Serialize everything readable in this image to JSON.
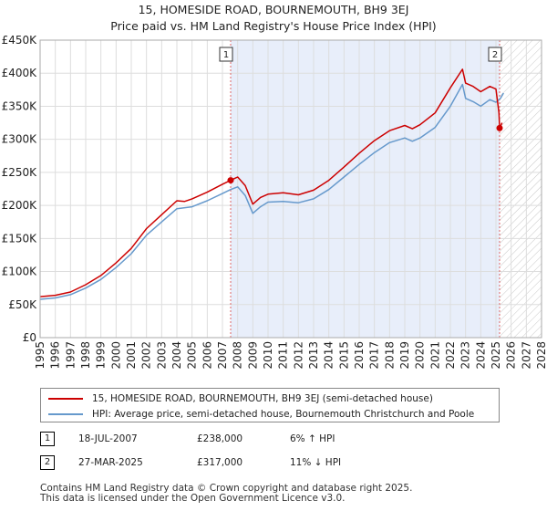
{
  "title": {
    "line1": "15, HOMESIDE ROAD, BOURNEMOUTH, BH9 3EJ",
    "line2": "Price paid vs. HM Land Registry's House Price Index (HPI)"
  },
  "colors": {
    "property_line": "#cc0000",
    "hpi_line": "#6699cc",
    "shade_fill": "#e8eefa",
    "grid": "#dddddd",
    "marker_vline": "#dd6666"
  },
  "chart_data": {
    "type": "line",
    "title": "Price paid vs. HM Land Registry's House Price Index (HPI)",
    "xlabel": "",
    "ylabel": "",
    "xlim": [
      1995,
      2028
    ],
    "ylim": [
      0,
      450000
    ],
    "x_ticks": [
      1995,
      1996,
      1997,
      1998,
      1999,
      2000,
      2001,
      2002,
      2003,
      2004,
      2005,
      2006,
      2007,
      2008,
      2009,
      2010,
      2011,
      2012,
      2013,
      2014,
      2015,
      2016,
      2017,
      2018,
      2019,
      2020,
      2021,
      2022,
      2023,
      2024,
      2025,
      2026,
      2027,
      2028
    ],
    "y_ticks": [
      {
        "value": 0,
        "label": "£0"
      },
      {
        "value": 50000,
        "label": "£50K"
      },
      {
        "value": 100000,
        "label": "£100K"
      },
      {
        "value": 150000,
        "label": "£150K"
      },
      {
        "value": 200000,
        "label": "£200K"
      },
      {
        "value": 250000,
        "label": "£250K"
      },
      {
        "value": 300000,
        "label": "£300K"
      },
      {
        "value": 350000,
        "label": "£350K"
      },
      {
        "value": 400000,
        "label": "£400K"
      },
      {
        "value": 450000,
        "label": "£450K"
      }
    ],
    "grid": true,
    "shaded_period": [
      2007.54,
      2025.24
    ],
    "hatched_after": 2025.24,
    "series": [
      {
        "name": "15, HOMESIDE ROAD, BOURNEMOUTH, BH9 3EJ (semi-detached house)",
        "color": "#cc0000",
        "x": [
          1995,
          1996,
          1997,
          1998,
          1999,
          2000,
          2001,
          2002,
          2003,
          2004,
          2004.5,
          2005,
          2006,
          2007,
          2007.54,
          2008,
          2008.5,
          2009,
          2009.5,
          2010,
          2011,
          2012,
          2013,
          2014,
          2015,
          2016,
          2017,
          2018,
          2019,
          2019.5,
          2020,
          2021,
          2022,
          2022.8,
          2023,
          2023.5,
          2024,
          2024.6,
          2025,
          2025.2,
          2025.24,
          2025.4
        ],
        "y": [
          62000,
          64000,
          69000,
          80000,
          94000,
          113000,
          135000,
          165000,
          186000,
          207000,
          206000,
          210000,
          220000,
          232000,
          238000,
          243000,
          230000,
          202000,
          212000,
          217000,
          219000,
          216000,
          223000,
          238000,
          258000,
          279000,
          298000,
          313000,
          321000,
          316000,
          322000,
          340000,
          378000,
          406000,
          385000,
          380000,
          372000,
          380000,
          376000,
          340000,
          317000,
          325000
        ]
      },
      {
        "name": "HPI: Average price, semi-detached house, Bournemouth Christchurch and Poole",
        "color": "#6699cc",
        "x": [
          1995,
          1996,
          1997,
          1998,
          1999,
          2000,
          2001,
          2002,
          2003,
          2004,
          2005,
          2006,
          2007,
          2007.54,
          2008,
          2008.5,
          2009,
          2009.5,
          2010,
          2011,
          2012,
          2013,
          2014,
          2015,
          2016,
          2017,
          2018,
          2019,
          2019.5,
          2020,
          2021,
          2022,
          2022.8,
          2023,
          2023.5,
          2024,
          2024.6,
          2025,
          2025.3,
          2025.5
        ],
        "y": [
          58000,
          60000,
          65000,
          75000,
          88000,
          106000,
          127000,
          155000,
          175000,
          195000,
          198000,
          207000,
          218000,
          224000,
          228000,
          215000,
          188000,
          198000,
          205000,
          206000,
          204000,
          210000,
          224000,
          243000,
          262000,
          280000,
          295000,
          302000,
          297000,
          302000,
          318000,
          350000,
          383000,
          362000,
          357000,
          350000,
          360000,
          356000,
          362000,
          370000
        ]
      }
    ],
    "transactions": [
      {
        "label": "1",
        "x": 2007.54,
        "y": 238000
      },
      {
        "label": "2",
        "x": 2025.24,
        "y": 317000
      }
    ]
  },
  "legend": {
    "property": "15, HOMESIDE ROAD, BOURNEMOUTH, BH9 3EJ (semi-detached house)",
    "hpi": "HPI: Average price, semi-detached house, Bournemouth Christchurch and Poole"
  },
  "transactions": [
    {
      "num": "1",
      "date": "18-JUL-2007",
      "price": "£238,000",
      "hpi": "6% ↑ HPI"
    },
    {
      "num": "2",
      "date": "27-MAR-2025",
      "price": "£317,000",
      "hpi": "11% ↓ HPI"
    }
  ],
  "footer": {
    "line1": "Contains HM Land Registry data © Crown copyright and database right 2025.",
    "line2": "This data is licensed under the Open Government Licence v3.0."
  }
}
